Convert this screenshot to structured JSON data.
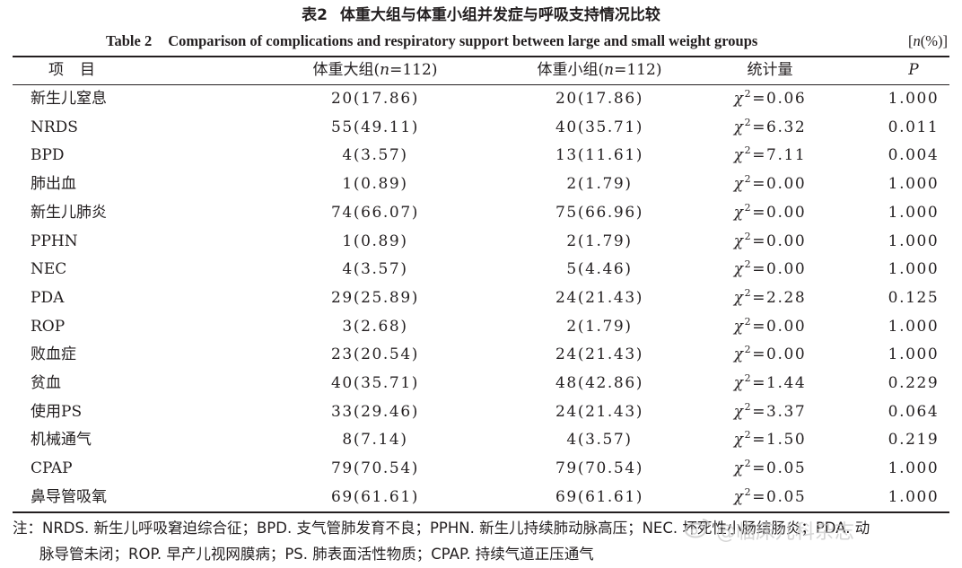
{
  "caption": {
    "cn_number": "表2",
    "cn_title": "体重大组与体重小组并发症与呼吸支持情况比较",
    "en_number": "Table 2",
    "en_title": "Comparison of complications and respiratory support between large and small weight groups",
    "unit_open": "[",
    "unit_n": "n",
    "unit_close": "(%)]"
  },
  "table": {
    "headers": {
      "item": "项目",
      "big_prefix": "体重大组(",
      "big_n": "n",
      "big_suffix": "=112)",
      "small_prefix": "体重小组(",
      "small_n": "n",
      "small_suffix": "=112)",
      "stat": "统计量",
      "p": "P"
    },
    "chi_symbol": "χ",
    "rows": [
      {
        "item": "新生儿窒息",
        "big": "20(17.86)",
        "small": "20(17.86)",
        "stat": "=0.06",
        "p": "1.000"
      },
      {
        "item": "NRDS",
        "big": "55(49.11)",
        "small": "40(35.71)",
        "stat": "=6.32",
        "p": "0.011"
      },
      {
        "item": "BPD",
        "big": "4(3.57)",
        "small": "13(11.61)",
        "stat": "=7.11",
        "p": "0.004"
      },
      {
        "item": "肺出血",
        "big": "1(0.89)",
        "small": "2(1.79)",
        "stat": "=0.00",
        "p": "1.000"
      },
      {
        "item": "新生儿肺炎",
        "big": "74(66.07)",
        "small": "75(66.96)",
        "stat": "=0.00",
        "p": "1.000"
      },
      {
        "item": "PPHN",
        "big": "1(0.89)",
        "small": "2(1.79)",
        "stat": "=0.00",
        "p": "1.000"
      },
      {
        "item": "NEC",
        "big": "4(3.57)",
        "small": "5(4.46)",
        "stat": "=0.00",
        "p": "1.000"
      },
      {
        "item": "PDA",
        "big": "29(25.89)",
        "small": "24(21.43)",
        "stat": "=2.28",
        "p": "0.125"
      },
      {
        "item": "ROP",
        "big": "3(2.68)",
        "small": "2(1.79)",
        "stat": "=0.00",
        "p": "1.000"
      },
      {
        "item": "败血症",
        "big": "23(20.54)",
        "small": "24(21.43)",
        "stat": "=0.00",
        "p": "1.000"
      },
      {
        "item": "贫血",
        "big": "40(35.71)",
        "small": "48(42.86)",
        "stat": "=1.44",
        "p": "0.229"
      },
      {
        "item": "使用PS",
        "big": "33(29.46)",
        "small": "24(21.43)",
        "stat": "=3.37",
        "p": "0.064"
      },
      {
        "item": "机械通气",
        "big": "8(7.14)",
        "small": "4(3.57)",
        "stat": "=1.50",
        "p": "0.219"
      },
      {
        "item": "CPAP",
        "big": "79(70.54)",
        "small": "79(70.54)",
        "stat": "=0.05",
        "p": "1.000"
      },
      {
        "item": "鼻导管吸氧",
        "big": "69(61.61)",
        "small": "69(61.61)",
        "stat": "=0.05",
        "p": "1.000"
      }
    ]
  },
  "note": {
    "line1": "注：NRDS. 新生儿呼吸窘迫综合征；BPD. 支气管肺发育不良；PPHN. 新生儿持续肺动脉高压；NEC. 坏死性小肠结肠炎；PDA. 动",
    "line2": "脉导管未闭；ROP. 早产儿视网膜病；PS. 肺表面活性物质；CPAP. 持续气道正压通气"
  },
  "watermark": {
    "icon": "weibo-icon",
    "text": "@临床儿科杂志"
  }
}
